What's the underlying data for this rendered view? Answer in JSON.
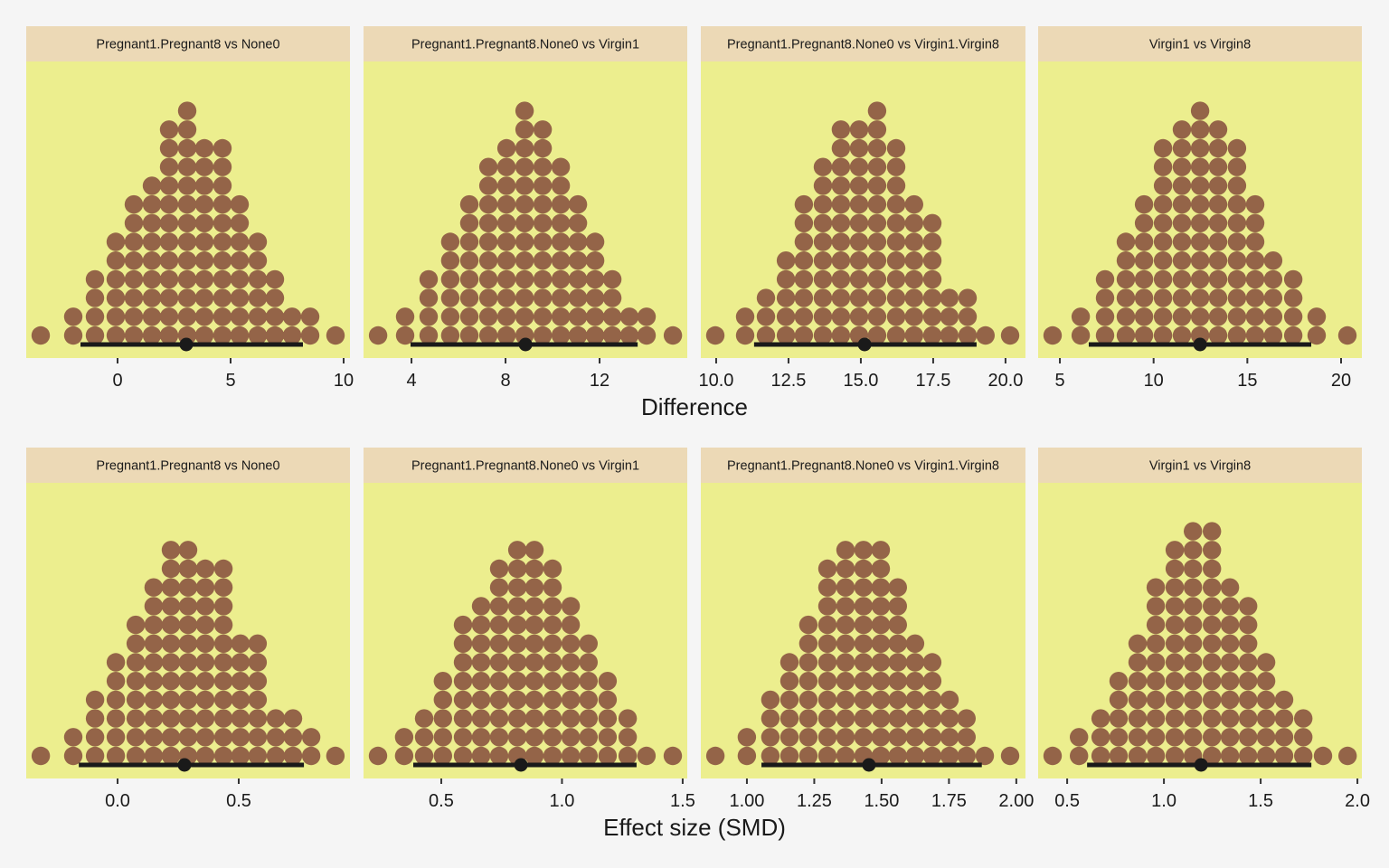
{
  "colors": {
    "page_bg": "#f5f5f5",
    "panel_bg": "#ecee8e",
    "strip_bg": "#ecd9b6",
    "dot": "#946448",
    "interval": "#1a1a1a"
  },
  "chart_data": [
    {
      "type": "dotplot",
      "row": "Difference",
      "xlabel": "Difference",
      "panels": [
        {
          "title": "Pregnant1.Pregnant8 vs None0",
          "xlim": [
            -4.04,
            10.28
          ],
          "ticks": [
            0,
            5,
            10
          ],
          "tick_labels": [
            "0",
            "5",
            "10"
          ],
          "bins": [
            -3.4,
            -1.96,
            -1.0,
            -0.08,
            0.72,
            1.52,
            2.28,
            3.08,
            3.84,
            4.64,
            5.4,
            6.2,
            6.96,
            7.72,
            8.52,
            9.64
          ],
          "counts": [
            1,
            2,
            4,
            6,
            8,
            9,
            12,
            13,
            11,
            11,
            8,
            6,
            4,
            2,
            2,
            1
          ],
          "point_estimate": 3.04,
          "ci": [
            -1.64,
            8.2
          ]
        },
        {
          "title": "Pregnant1.Pregnant8.None0 vs Virgin1",
          "xlim": [
            1.96,
            15.73
          ],
          "ticks": [
            4,
            8,
            12
          ],
          "tick_labels": [
            "4",
            "8",
            "12"
          ],
          "bins": [
            2.58,
            3.73,
            4.73,
            5.65,
            6.46,
            7.27,
            8.04,
            8.81,
            9.58,
            10.35,
            11.08,
            11.81,
            12.54,
            13.27,
            14.0,
            15.12
          ],
          "counts": [
            1,
            2,
            4,
            6,
            8,
            10,
            11,
            13,
            12,
            10,
            8,
            6,
            4,
            2,
            2,
            1
          ],
          "point_estimate": 8.85,
          "ci": [
            3.96,
            13.62
          ]
        },
        {
          "title": "Pregnant1.Pregnant8.None0 vs Virgin1.Virgin8",
          "xlim": [
            9.47,
            20.69
          ],
          "ticks": [
            10,
            12.5,
            15,
            17.5,
            20
          ],
          "tick_labels": [
            "10.0",
            "12.5",
            "15.0",
            "17.5",
            "20.0"
          ],
          "bins": [
            9.97,
            11.0,
            11.72,
            12.41,
            13.03,
            13.69,
            14.31,
            14.94,
            15.56,
            16.22,
            16.84,
            17.47,
            18.06,
            18.69,
            19.31,
            20.16
          ],
          "counts": [
            1,
            2,
            3,
            5,
            8,
            10,
            12,
            12,
            13,
            11,
            8,
            7,
            3,
            3,
            1,
            1
          ],
          "point_estimate": 15.13,
          "ci": [
            11.31,
            19.0
          ]
        },
        {
          "title": "Virgin1 vs Virgin8",
          "xlim": [
            3.84,
            21.11
          ],
          "ticks": [
            5,
            10,
            15,
            20
          ],
          "tick_labels": [
            "5",
            "10",
            "15",
            "20"
          ],
          "bins": [
            4.61,
            6.11,
            7.41,
            8.52,
            9.49,
            10.5,
            11.51,
            12.48,
            13.44,
            14.45,
            15.42,
            16.38,
            17.45,
            18.7,
            20.34
          ],
          "counts": [
            1,
            2,
            4,
            6,
            8,
            11,
            12,
            13,
            12,
            11,
            8,
            5,
            4,
            2,
            1
          ],
          "point_estimate": 12.48,
          "ci": [
            6.54,
            18.41
          ]
        }
      ]
    },
    {
      "type": "dotplot",
      "row": "Effect size (SMD)",
      "xlabel": "Effect size (SMD)",
      "panels": [
        {
          "title": "Pregnant1.Pregnant8 vs None0",
          "xlim": [
            -0.377,
            0.959
          ],
          "ticks": [
            0,
            0.5
          ],
          "tick_labels": [
            "0.0",
            "0.5"
          ],
          "bins": [
            -0.317,
            -0.183,
            -0.093,
            -0.007,
            0.075,
            0.149,
            0.22,
            0.291,
            0.362,
            0.437,
            0.507,
            0.578,
            0.653,
            0.724,
            0.799,
            0.899
          ],
          "counts": [
            1,
            2,
            4,
            6,
            8,
            10,
            12,
            12,
            11,
            11,
            7,
            7,
            3,
            3,
            2,
            1
          ],
          "point_estimate": 0.276,
          "ci": [
            -0.16,
            0.769
          ]
        },
        {
          "title": "Pregnant1.Pregnant8.None0 vs Virgin1",
          "xlim": [
            0.178,
            1.519
          ],
          "ticks": [
            0.5,
            1.0,
            1.5
          ],
          "tick_labels": [
            "0.5",
            "1.0",
            "1.5"
          ],
          "bins": [
            0.238,
            0.346,
            0.429,
            0.507,
            0.59,
            0.665,
            0.74,
            0.815,
            0.886,
            0.961,
            1.036,
            1.11,
            1.189,
            1.272,
            1.35,
            1.459
          ],
          "counts": [
            1,
            2,
            3,
            5,
            8,
            9,
            11,
            12,
            12,
            11,
            9,
            7,
            5,
            3,
            1,
            1
          ],
          "point_estimate": 0.83,
          "ci": [
            0.384,
            1.309
          ]
        },
        {
          "title": "Pregnant1.Pregnant8.None0 vs Virgin1.Virgin8",
          "xlim": [
            0.829,
            2.034
          ],
          "ticks": [
            1.0,
            1.25,
            1.5,
            1.75,
            2.0
          ],
          "tick_labels": [
            "1.00",
            "1.25",
            "1.50",
            "1.75",
            "2.00"
          ],
          "bins": [
            0.883,
            1.0,
            1.087,
            1.158,
            1.228,
            1.299,
            1.366,
            1.433,
            1.497,
            1.56,
            1.624,
            1.688,
            1.752,
            1.815,
            1.883,
            1.977
          ],
          "counts": [
            1,
            2,
            4,
            6,
            8,
            11,
            12,
            12,
            12,
            10,
            7,
            6,
            4,
            3,
            1,
            1
          ],
          "point_estimate": 1.453,
          "ci": [
            1.054,
            1.872
          ]
        },
        {
          "title": "Virgin1 vs Virgin8",
          "xlim": [
            0.35,
            2.023
          ],
          "ticks": [
            0.5,
            1.0,
            1.5,
            2.0
          ],
          "tick_labels": [
            "0.5",
            "1.0",
            "1.5",
            "2.0"
          ],
          "bins": [
            0.425,
            0.561,
            0.673,
            0.766,
            0.864,
            0.958,
            1.056,
            1.15,
            1.248,
            1.341,
            1.435,
            1.528,
            1.621,
            1.72,
            1.822,
            1.949
          ],
          "counts": [
            1,
            2,
            3,
            5,
            7,
            10,
            12,
            13,
            13,
            10,
            9,
            6,
            4,
            3,
            1,
            1
          ],
          "point_estimate": 1.192,
          "ci": [
            0.603,
            1.762
          ]
        }
      ]
    }
  ]
}
